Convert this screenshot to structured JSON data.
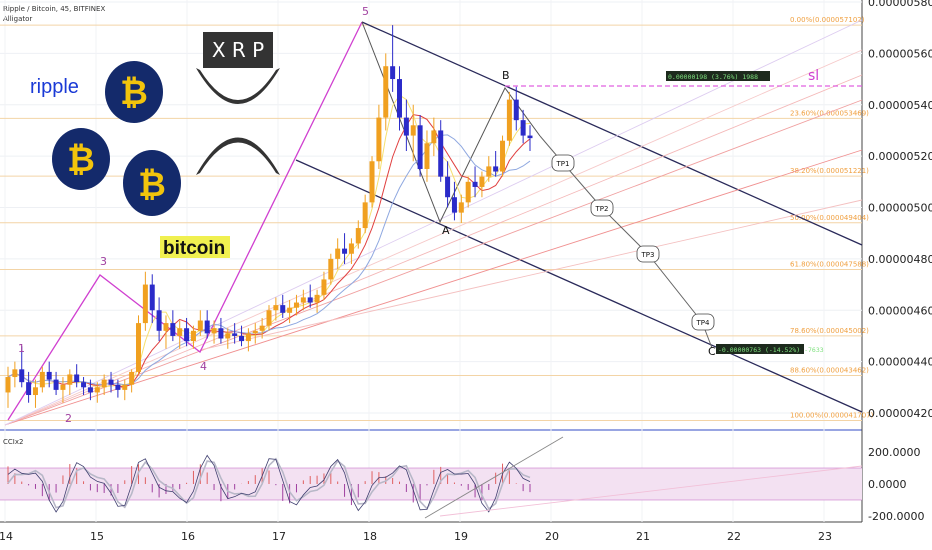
{
  "header": {
    "symbol_line": "Ripple / Bitcoin, 45, BITFINEX",
    "indicator": "Alligator"
  },
  "logos": {
    "ripple_text": "ripple",
    "xrp_text": "X R P",
    "bitcoin_text": "bitcoin",
    "btc_symbol": "₿"
  },
  "chart_data": {
    "type": "candlestick",
    "symbol": "Ripple / Bitcoin",
    "interval": "45",
    "exchange": "BITFINEX",
    "x_ticks": [
      "14",
      "15",
      "16",
      "17",
      "18",
      "19",
      "20",
      "21",
      "22",
      "23"
    ],
    "y_ticks": [
      "0.0000058000",
      "0.0000056000",
      "0.0000054000",
      "0.0000052000",
      "0.0000050000",
      "0.0000048000",
      "0.0000046000",
      "0.0000044000",
      "0.0000042000"
    ],
    "ylim": [
      4.1e-06,
      5.8e-06
    ],
    "current_price": "0.000052680",
    "current_price_color": "#e0541b",
    "fib_levels": [
      {
        "label": "0.00%(0.000057102)",
        "price": 5.7102e-06
      },
      {
        "label": "23.60%(0.000053469)",
        "price": 5.3469e-06
      },
      {
        "label": "38.20%(0.000051221)",
        "price": 5.1221e-06
      },
      {
        "label": "50.00%(0.000049404)",
        "price": 4.9404e-06
      },
      {
        "label": "61.80%(0.000047588)",
        "price": 4.7588e-06
      },
      {
        "label": "78.60%(0.000045002)",
        "price": 4.5002e-06
      },
      {
        "label": "88.60%(0.000043462)",
        "price": 4.3462e-06
      },
      {
        "label": "100.00%(0.000041707)",
        "price": 4.1707e-06
      }
    ],
    "wave_labels": [
      "1",
      "2",
      "3",
      "4",
      "5"
    ],
    "pattern_labels": [
      "A",
      "B",
      "C"
    ],
    "targets": [
      "TP1",
      "TP2",
      "TP3",
      "TP4"
    ],
    "stop_label": "sl",
    "stop_box": "0.00000198 (3.76%) 1988",
    "target_box": "-0.00000763 (-14.52%) -7633",
    "candles": [
      [
        4.28,
        4.38,
        4.22,
        4.34
      ],
      [
        4.34,
        4.4,
        4.3,
        4.37
      ],
      [
        4.37,
        4.46,
        4.3,
        4.32
      ],
      [
        4.32,
        4.36,
        4.24,
        4.27
      ],
      [
        4.27,
        4.33,
        4.22,
        4.3
      ],
      [
        4.3,
        4.38,
        4.28,
        4.36
      ],
      [
        4.36,
        4.4,
        4.3,
        4.33
      ],
      [
        4.33,
        4.36,
        4.27,
        4.29
      ],
      [
        4.29,
        4.34,
        4.24,
        4.31
      ],
      [
        4.31,
        4.37,
        4.27,
        4.35
      ],
      [
        4.35,
        4.39,
        4.3,
        4.32
      ],
      [
        4.32,
        4.34,
        4.27,
        4.3
      ],
      [
        4.3,
        4.33,
        4.25,
        4.28
      ],
      [
        4.28,
        4.32,
        4.24,
        4.3
      ],
      [
        4.3,
        4.35,
        4.27,
        4.33
      ],
      [
        4.33,
        4.36,
        4.28,
        4.31
      ],
      [
        4.31,
        4.33,
        4.26,
        4.29
      ],
      [
        4.29,
        4.33,
        4.25,
        4.31
      ],
      [
        4.31,
        4.37,
        4.28,
        4.36
      ],
      [
        4.36,
        4.58,
        4.35,
        4.55
      ],
      [
        4.55,
        4.75,
        4.52,
        4.7
      ],
      [
        4.7,
        4.74,
        4.55,
        4.6
      ],
      [
        4.6,
        4.65,
        4.48,
        4.52
      ],
      [
        4.52,
        4.58,
        4.45,
        4.55
      ],
      [
        4.55,
        4.6,
        4.48,
        4.5
      ],
      [
        4.5,
        4.56,
        4.45,
        4.53
      ],
      [
        4.53,
        4.57,
        4.46,
        4.48
      ],
      [
        4.48,
        4.54,
        4.45,
        4.52
      ],
      [
        4.52,
        4.6,
        4.5,
        4.56
      ],
      [
        4.56,
        4.6,
        4.49,
        4.51
      ],
      [
        4.51,
        4.56,
        4.47,
        4.53
      ],
      [
        4.53,
        4.57,
        4.47,
        4.49
      ],
      [
        4.49,
        4.53,
        4.45,
        4.51
      ],
      [
        4.51,
        4.55,
        4.47,
        4.5
      ],
      [
        4.5,
        4.54,
        4.46,
        4.48
      ],
      [
        4.48,
        4.53,
        4.44,
        4.51
      ],
      [
        4.51,
        4.55,
        4.47,
        4.52
      ],
      [
        4.52,
        4.57,
        4.49,
        4.54
      ],
      [
        4.54,
        4.62,
        4.52,
        4.6
      ],
      [
        4.6,
        4.65,
        4.56,
        4.62
      ],
      [
        4.62,
        4.66,
        4.57,
        4.59
      ],
      [
        4.59,
        4.64,
        4.55,
        4.61
      ],
      [
        4.61,
        4.66,
        4.58,
        4.63
      ],
      [
        4.63,
        4.68,
        4.6,
        4.65
      ],
      [
        4.65,
        4.7,
        4.61,
        4.63
      ],
      [
        4.63,
        4.68,
        4.59,
        4.66
      ],
      [
        4.66,
        4.75,
        4.64,
        4.72
      ],
      [
        4.72,
        4.82,
        4.7,
        4.8
      ],
      [
        4.8,
        4.88,
        4.76,
        4.84
      ],
      [
        4.84,
        4.9,
        4.78,
        4.82
      ],
      [
        4.82,
        4.88,
        4.78,
        4.86
      ],
      [
        4.86,
        4.95,
        4.84,
        4.92
      ],
      [
        4.92,
        5.05,
        4.9,
        5.02
      ],
      [
        5.02,
        5.2,
        5.0,
        5.18
      ],
      [
        5.18,
        5.4,
        5.15,
        5.35
      ],
      [
        5.35,
        5.6,
        5.3,
        5.55
      ],
      [
        5.55,
        5.71,
        5.45,
        5.5
      ],
      [
        5.5,
        5.55,
        5.3,
        5.35
      ],
      [
        5.35,
        5.42,
        5.22,
        5.28
      ],
      [
        5.28,
        5.4,
        5.18,
        5.32
      ],
      [
        5.32,
        5.36,
        5.12,
        5.15
      ],
      [
        5.15,
        5.3,
        5.1,
        5.25
      ],
      [
        5.25,
        5.35,
        5.2,
        5.3
      ],
      [
        5.3,
        5.34,
        5.1,
        5.12
      ],
      [
        5.12,
        5.18,
        5.0,
        5.04
      ],
      [
        5.04,
        5.1,
        4.95,
        4.98
      ],
      [
        4.98,
        5.05,
        4.94,
        5.02
      ],
      [
        5.02,
        5.12,
        5.0,
        5.1
      ],
      [
        5.1,
        5.16,
        5.04,
        5.08
      ],
      [
        5.08,
        5.14,
        5.04,
        5.12
      ],
      [
        5.12,
        5.2,
        5.1,
        5.16
      ],
      [
        5.16,
        5.22,
        5.12,
        5.14
      ],
      [
        5.14,
        5.28,
        5.12,
        5.26
      ],
      [
        5.26,
        5.45,
        5.24,
        5.42
      ],
      [
        5.42,
        5.47,
        5.3,
        5.34
      ],
      [
        5.34,
        5.38,
        5.25,
        5.28
      ],
      [
        5.28,
        5.32,
        5.22,
        5.27
      ]
    ],
    "cci_ticks": [
      "200.0000",
      "0.0000",
      "-200.0000"
    ],
    "cci_indicator": "CCIx2"
  }
}
